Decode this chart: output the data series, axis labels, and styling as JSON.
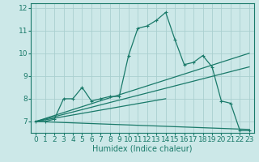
{
  "xlabel": "Humidex (Indice chaleur)",
  "bg_color": "#cce8e8",
  "grid_color": "#aacfcf",
  "line_color": "#1a7a6a",
  "xlim": [
    -0.5,
    23.5
  ],
  "ylim": [
    6.5,
    12.2
  ],
  "yticks": [
    7,
    8,
    9,
    10,
    11,
    12
  ],
  "xticks": [
    0,
    1,
    2,
    3,
    4,
    5,
    6,
    7,
    8,
    9,
    10,
    11,
    12,
    13,
    14,
    15,
    16,
    17,
    18,
    19,
    20,
    21,
    22,
    23
  ],
  "series1_x": [
    0,
    1,
    2,
    3,
    4,
    5,
    6,
    7,
    8,
    9,
    10,
    11,
    12,
    13,
    14,
    15,
    16,
    17,
    18,
    19,
    20,
    21,
    22,
    23
  ],
  "series1_y": [
    7.0,
    7.0,
    7.1,
    8.0,
    8.0,
    8.5,
    7.9,
    8.0,
    8.1,
    8.1,
    9.9,
    11.1,
    11.2,
    11.45,
    11.8,
    10.6,
    9.5,
    9.6,
    9.9,
    9.4,
    7.9,
    7.8,
    6.6,
    6.6
  ],
  "line2_x": [
    0,
    23
  ],
  "line2_y": [
    7.0,
    10.0
  ],
  "line3_x": [
    0,
    23
  ],
  "line3_y": [
    7.0,
    9.4
  ],
  "line4_x": [
    0,
    14
  ],
  "line4_y": [
    7.0,
    8.0
  ],
  "line5_x": [
    0,
    23
  ],
  "line5_y": [
    7.0,
    6.65
  ],
  "font_size": 6.5,
  "label_font_size": 7
}
